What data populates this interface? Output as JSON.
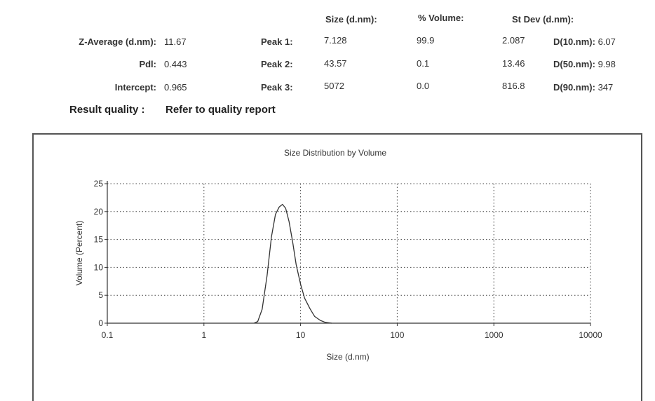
{
  "results": {
    "col_headers": {
      "size": "Size (d.nm):",
      "volume": "% Volume:",
      "stdev": "St Dev (d.nm):"
    },
    "z_average": {
      "label": "Z-Average (d.nm):",
      "value": "11.67"
    },
    "pdi": {
      "label": "Pdl:",
      "value": "0.443"
    },
    "intercept": {
      "label": "Intercept:",
      "value": "0.965"
    },
    "peaks": [
      {
        "label": "Peak 1:",
        "size": "7.128",
        "volume": "99.9",
        "stdev": "2.087",
        "d_label": "D(10.nm):",
        "d_value": "6.07"
      },
      {
        "label": "Peak 2:",
        "size": "43.57",
        "volume": "0.1",
        "stdev": "13.46",
        "d_label": "D(50.nm):",
        "d_value": "9.98"
      },
      {
        "label": "Peak 3:",
        "size": "5072",
        "volume": "0.0",
        "stdev": "816.8",
        "d_label": "D(90.nm):",
        "d_value": "347"
      }
    ],
    "result_quality_label": "Result quality :",
    "result_quality_value": "Refer to quality report"
  },
  "chart_data": {
    "type": "line",
    "title": "Size Distribution by Volume",
    "xlabel": "Size (d.nm)",
    "ylabel": "Volume (Percent)",
    "x_scale": "log",
    "xlim": [
      0.1,
      10000
    ],
    "ylim": [
      0,
      25
    ],
    "x_ticks": [
      "0.1",
      "1",
      "10",
      "100",
      "1000",
      "10000"
    ],
    "y_ticks": [
      "0",
      "5",
      "10",
      "15",
      "20",
      "25"
    ],
    "grid": true,
    "series": [
      {
        "x": [
          3.3,
          3.6,
          4.0,
          4.5,
          5.0,
          5.5,
          6.0,
          6.5,
          7.0,
          7.6,
          8.3,
          9.0,
          10.0,
          11.0,
          12.5,
          14.0,
          16.0,
          18.0,
          21.0
        ],
        "y": [
          0,
          0.3,
          2.5,
          8.5,
          15.5,
          19.5,
          20.8,
          21.3,
          20.6,
          18.2,
          14.5,
          10.5,
          7.0,
          4.5,
          2.6,
          1.2,
          0.5,
          0.15,
          0
        ]
      }
    ]
  }
}
